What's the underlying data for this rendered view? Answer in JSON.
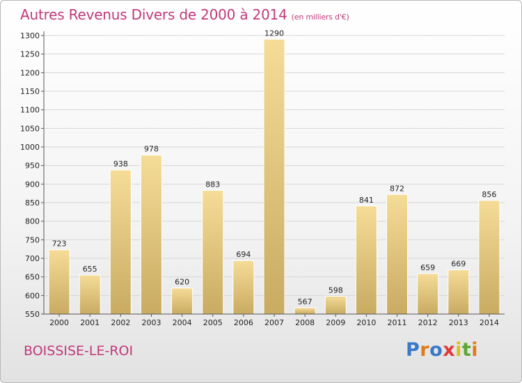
{
  "chart_data": {
    "type": "bar",
    "title": "Autres Revenus Divers de 2000 à 2014",
    "subtitle": "(en milliers d'€)",
    "categories": [
      "2000",
      "2001",
      "2002",
      "2003",
      "2004",
      "2005",
      "2006",
      "2007",
      "2008",
      "2009",
      "2010",
      "2011",
      "2012",
      "2013",
      "2014"
    ],
    "values": [
      723,
      655,
      938,
      978,
      620,
      883,
      694,
      1290,
      567,
      598,
      841,
      872,
      659,
      669,
      856
    ],
    "ylim": [
      550,
      1300
    ],
    "ytick_step": 50,
    "grid": true,
    "bar_color_top": "#f5dc97",
    "bar_color_bottom": "#c9ab62",
    "title_color": "#c0397a"
  },
  "footer": {
    "place": "BOISSISE-LE-ROI",
    "logo_letters": [
      "P",
      "r",
      "o",
      "x",
      "i",
      "t",
      "i"
    ],
    "logo_colors": [
      "#3a78c8",
      "#e07a1a",
      "#3a78c8",
      "#e03a3a",
      "#d8c21a",
      "#5aa832",
      "#e07a1a"
    ]
  }
}
